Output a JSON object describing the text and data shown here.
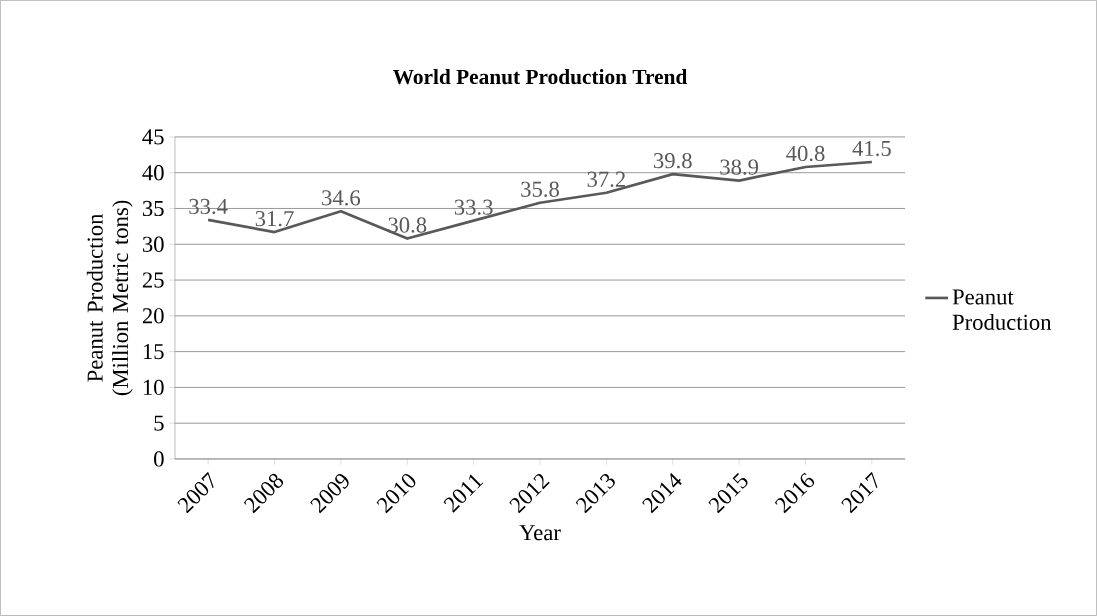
{
  "chart_data": {
    "type": "line",
    "title": "World Peanut Production Trend",
    "xlabel": "Year",
    "ylabel": "Peanut Production (Million Metric tons)",
    "categories": [
      "2007",
      "2008",
      "2009",
      "2010",
      "2011",
      "2012",
      "2013",
      "2014",
      "2015",
      "2016",
      "2017"
    ],
    "series": [
      {
        "name": "Peanut Production",
        "color": "#595959",
        "values": [
          33.4,
          31.7,
          34.6,
          30.8,
          33.3,
          35.8,
          37.2,
          39.8,
          38.9,
          40.8,
          41.5
        ]
      }
    ],
    "ylim": [
      0,
      45
    ],
    "yticks": [
      0,
      5,
      10,
      15,
      20,
      25,
      30,
      35,
      40,
      45
    ],
    "grid": "y",
    "legend": "right",
    "data_labels": true,
    "marker": "none",
    "line_style": "solid"
  }
}
